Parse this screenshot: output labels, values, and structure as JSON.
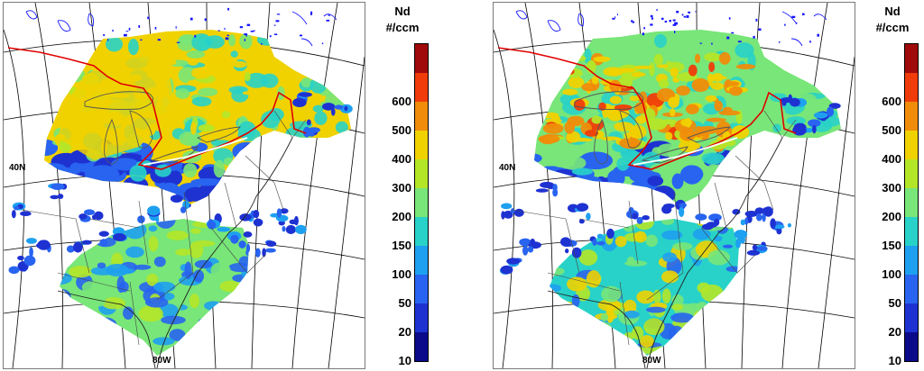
{
  "panels": [
    {
      "id": "left",
      "variant": "lower",
      "lat_label": "40N",
      "lon_label": "80W"
    },
    {
      "id": "right",
      "variant": "higher",
      "lat_label": "40N",
      "lon_label": "80W"
    }
  ],
  "colorbar": {
    "title_line1": "Nd",
    "title_line2": "#/ccm",
    "levels": [
      {
        "label": "10",
        "color": "#0a0a8a"
      },
      {
        "label": "20",
        "color": "#1e32d2"
      },
      {
        "label": "50",
        "color": "#2864f0"
      },
      {
        "label": "100",
        "color": "#1ea0f0"
      },
      {
        "label": "150",
        "color": "#28d2c8"
      },
      {
        "label": "200",
        "color": "#78e678"
      },
      {
        "label": "300",
        "color": "#b4e628"
      },
      {
        "label": "400",
        "color": "#f0d200"
      },
      {
        "label": "500",
        "color": "#f08c0a"
      },
      {
        "label": "600",
        "color": "#f03c0a"
      },
      {
        "label": "",
        "color": "#a00a0a"
      }
    ]
  },
  "map_colors": {
    "ocean_bg": "#ffffff",
    "grid": "#000000",
    "border_red": "#e00000",
    "lakes_blue": "#1414ff"
  }
}
